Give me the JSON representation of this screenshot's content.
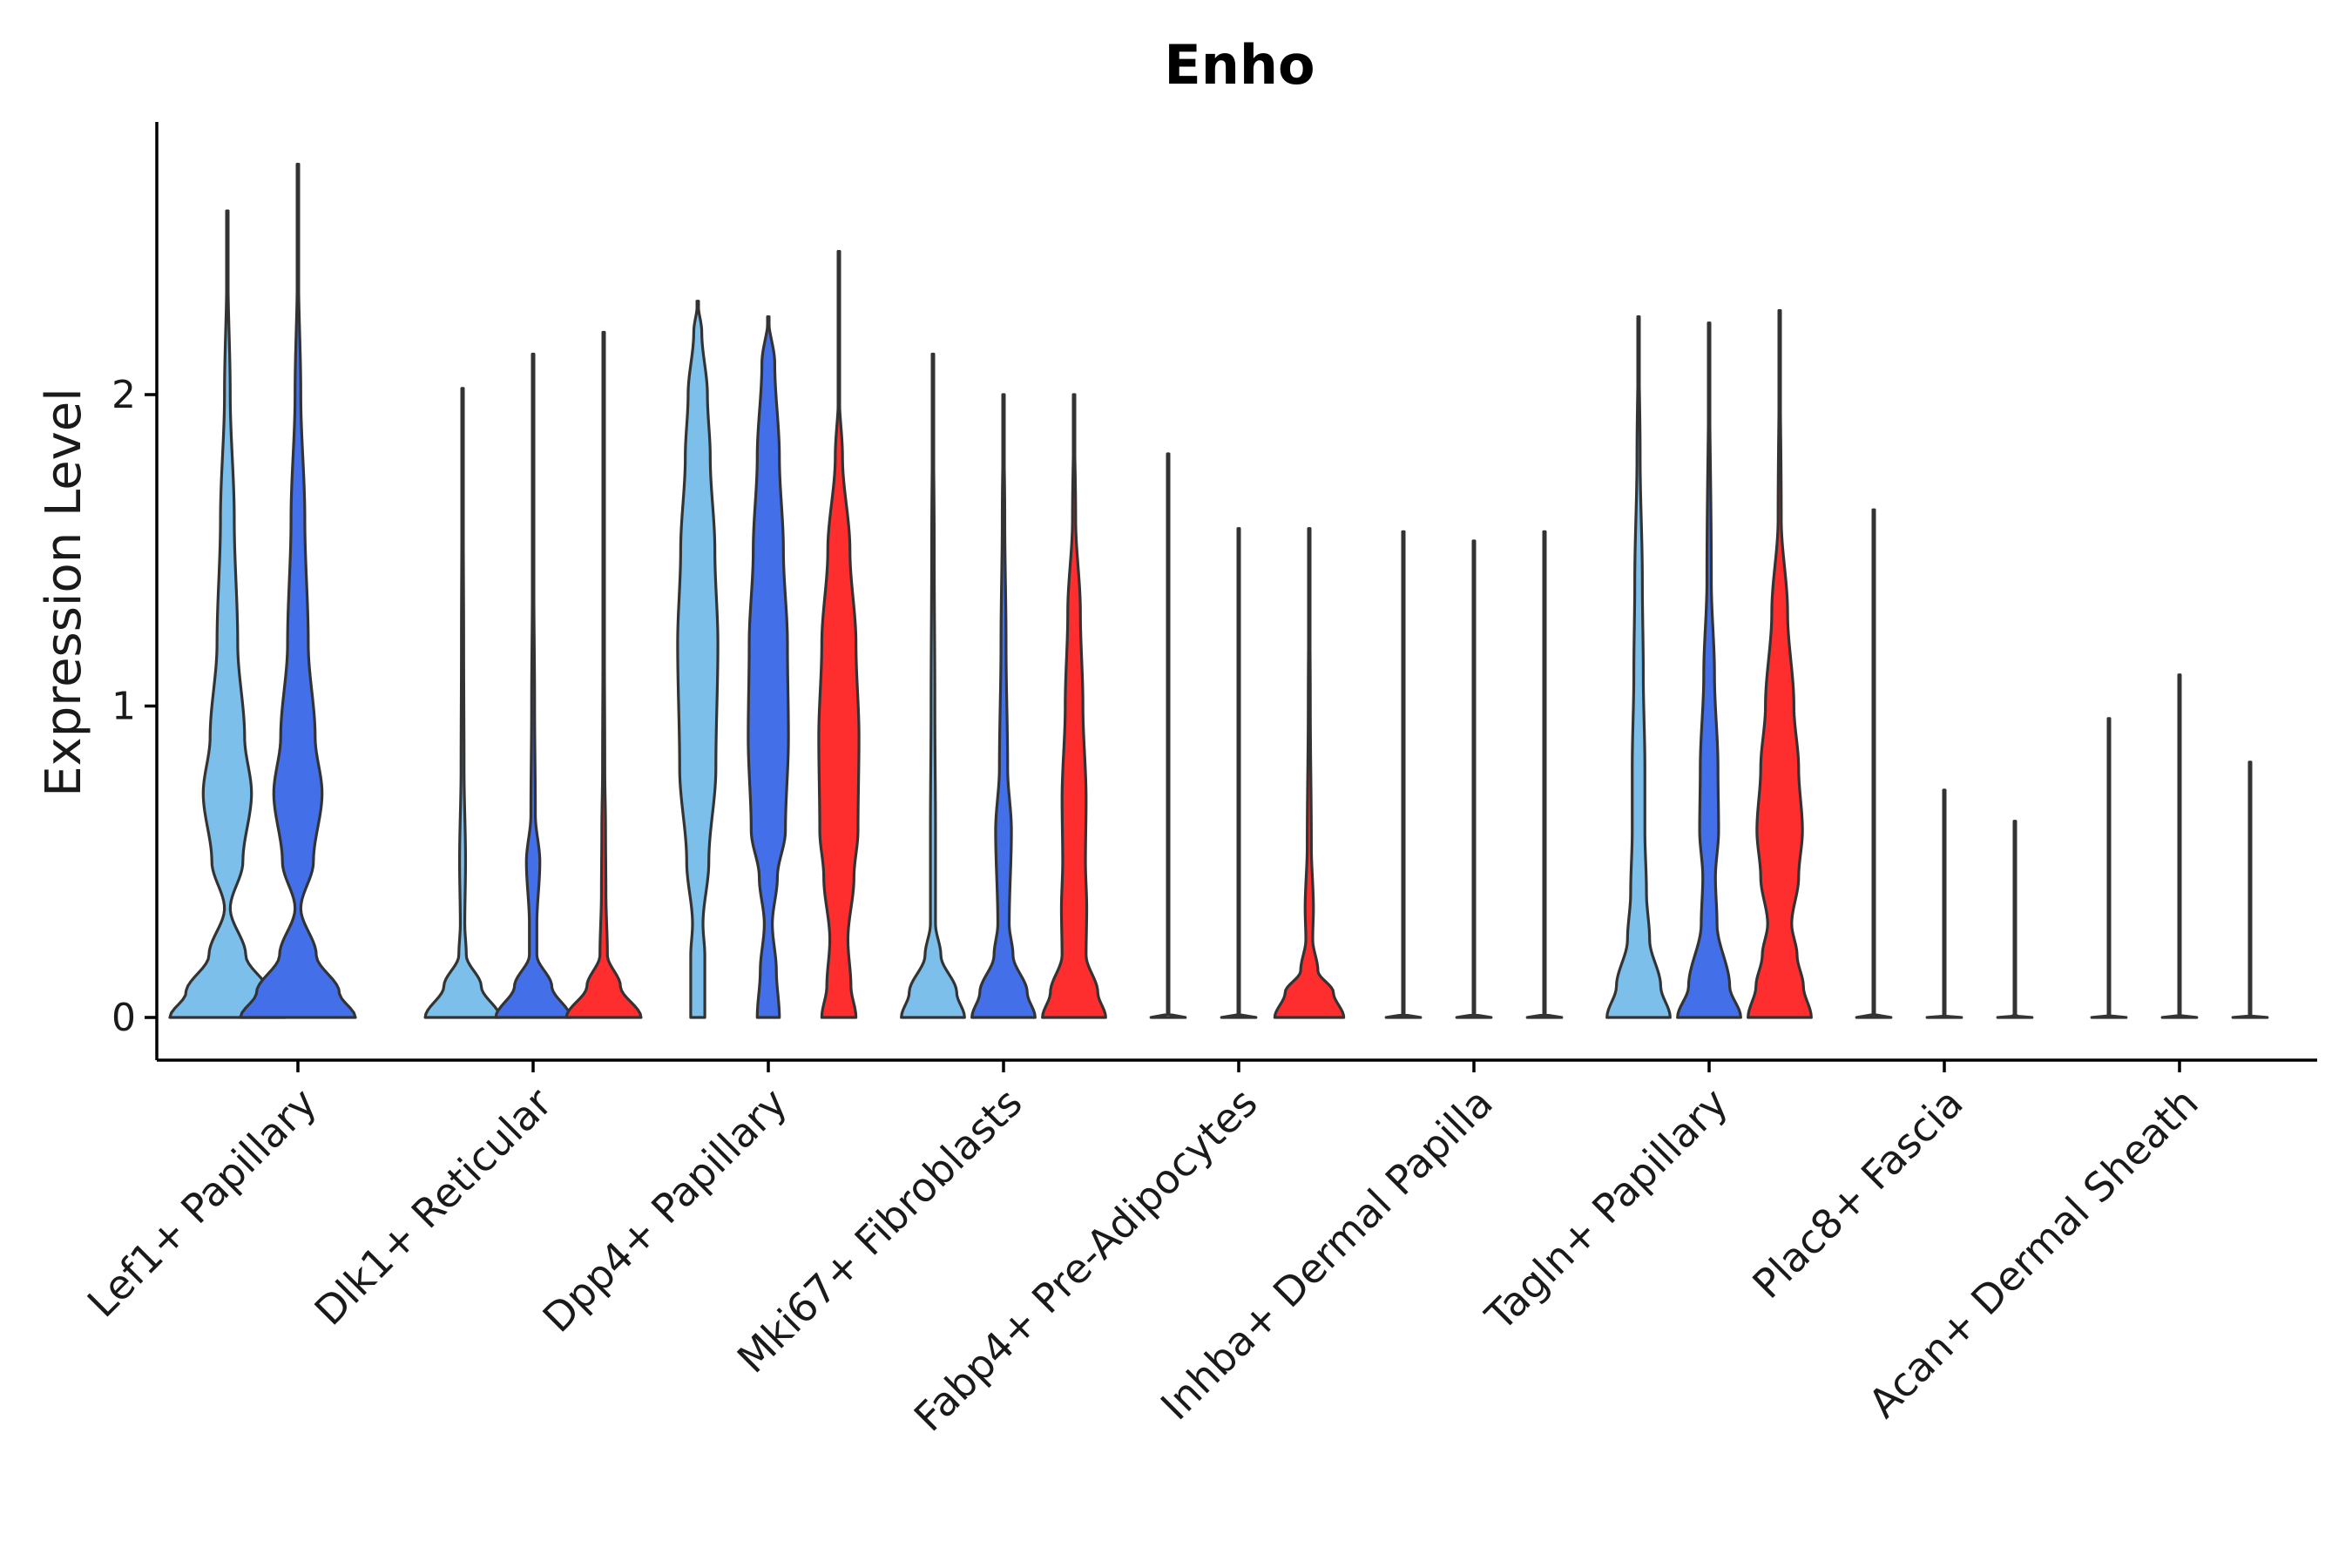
{
  "chart_data": {
    "type": "violin",
    "title": "Enho",
    "ylabel": "Expression Level",
    "xlabel": "",
    "ylim": [
      -0.14,
      2.88
    ],
    "yticks": [
      0,
      1,
      2
    ],
    "series_colors": [
      "#7cbfea",
      "#4370e8",
      "#fe2e2f"
    ],
    "categories": [
      {
        "name": "Lef1+ Papillary",
        "violins": [
          {
            "max": 2.59,
            "width": 1.0,
            "profile": [
              [
                0,
                1.0
              ],
              [
                0.08,
                0.72
              ],
              [
                0.2,
                0.32
              ],
              [
                0.35,
                0.05
              ],
              [
                0.5,
                0.27
              ],
              [
                0.72,
                0.42
              ],
              [
                0.9,
                0.3
              ],
              [
                1.2,
                0.18
              ],
              [
                1.6,
                0.12
              ],
              [
                2.0,
                0.05
              ],
              [
                2.4,
                0.01
              ],
              [
                2.59,
                0
              ]
            ]
          },
          {
            "max": 2.74,
            "width": 1.0,
            "profile": [
              [
                0,
                1.0
              ],
              [
                0.08,
                0.72
              ],
              [
                0.2,
                0.32
              ],
              [
                0.35,
                0.05
              ],
              [
                0.5,
                0.27
              ],
              [
                0.72,
                0.42
              ],
              [
                0.9,
                0.3
              ],
              [
                1.2,
                0.18
              ],
              [
                1.6,
                0.12
              ],
              [
                2.0,
                0.05
              ],
              [
                2.4,
                0.01
              ],
              [
                2.74,
                0
              ]
            ]
          },
          null
        ]
      },
      {
        "name": "Dlk1+ Reticular",
        "violins": [
          {
            "max": 2.02,
            "width": 0.65,
            "profile": [
              [
                0,
                1.0
              ],
              [
                0.1,
                0.5
              ],
              [
                0.2,
                0.1
              ],
              [
                0.3,
                0.06
              ],
              [
                0.5,
                0.08
              ],
              [
                0.8,
                0.04
              ],
              [
                1.2,
                0.03
              ],
              [
                1.6,
                0.02
              ],
              [
                2.02,
                0
              ]
            ]
          },
          {
            "max": 2.13,
            "width": 0.65,
            "profile": [
              [
                0,
                1.0
              ],
              [
                0.1,
                0.5
              ],
              [
                0.2,
                0.1
              ],
              [
                0.3,
                0.1
              ],
              [
                0.5,
                0.18
              ],
              [
                0.65,
                0.06
              ],
              [
                1.0,
                0.04
              ],
              [
                1.4,
                0.02
              ],
              [
                2.13,
                0
              ]
            ]
          },
          {
            "max": 2.2,
            "width": 0.65,
            "profile": [
              [
                0,
                1.0
              ],
              [
                0.1,
                0.45
              ],
              [
                0.2,
                0.1
              ],
              [
                0.4,
                0.06
              ],
              [
                0.6,
                0.05
              ],
              [
                0.8,
                0.03
              ],
              [
                1.2,
                0.02
              ],
              [
                2.2,
                0
              ]
            ]
          }
        ]
      },
      {
        "name": "Dpp4+ Papillary",
        "violins": [
          {
            "max": 2.3,
            "width": 0.35,
            "profile": [
              [
                0,
                0.35
              ],
              [
                0.2,
                0.35
              ],
              [
                0.3,
                0.26
              ],
              [
                0.5,
                0.55
              ],
              [
                0.8,
                0.9
              ],
              [
                1.2,
                1.0
              ],
              [
                1.5,
                0.85
              ],
              [
                1.8,
                0.62
              ],
              [
                2.0,
                0.48
              ],
              [
                2.2,
                0.2
              ],
              [
                2.3,
                0
              ]
            ]
          },
          {
            "max": 2.25,
            "width": 0.35,
            "profile": [
              [
                0,
                0.55
              ],
              [
                0.15,
                0.4
              ],
              [
                0.3,
                0.2
              ],
              [
                0.45,
                0.45
              ],
              [
                0.6,
                0.85
              ],
              [
                0.9,
                1.0
              ],
              [
                1.2,
                0.95
              ],
              [
                1.5,
                0.75
              ],
              [
                1.8,
                0.55
              ],
              [
                2.1,
                0.32
              ],
              [
                2.25,
                0
              ]
            ]
          },
          {
            "max": 2.46,
            "width": 0.35,
            "profile": [
              [
                0,
                0.85
              ],
              [
                0.1,
                0.6
              ],
              [
                0.25,
                0.45
              ],
              [
                0.45,
                0.75
              ],
              [
                0.6,
                0.95
              ],
              [
                0.9,
                1.0
              ],
              [
                1.2,
                0.85
              ],
              [
                1.5,
                0.55
              ],
              [
                1.8,
                0.18
              ],
              [
                2.0,
                0.02
              ],
              [
                2.46,
                0
              ]
            ]
          }
        ]
      },
      {
        "name": "Mki67+ Fibroblasts",
        "violins": [
          {
            "max": 2.13,
            "width": 0.55,
            "profile": [
              [
                0,
                1.0
              ],
              [
                0.08,
                0.75
              ],
              [
                0.2,
                0.25
              ],
              [
                0.3,
                0.08
              ],
              [
                0.6,
                0.08
              ],
              [
                1.0,
                0.06
              ],
              [
                1.5,
                0.04
              ],
              [
                2.13,
                0
              ]
            ]
          },
          {
            "max": 2.0,
            "width": 0.55,
            "profile": [
              [
                0,
                1.0
              ],
              [
                0.08,
                0.75
              ],
              [
                0.2,
                0.3
              ],
              [
                0.3,
                0.18
              ],
              [
                0.6,
                0.25
              ],
              [
                0.8,
                0.13
              ],
              [
                1.2,
                0.08
              ],
              [
                1.6,
                0.04
              ],
              [
                2.0,
                0
              ]
            ]
          },
          {
            "max": 2.0,
            "width": 0.55,
            "profile": [
              [
                0,
                1.0
              ],
              [
                0.08,
                0.75
              ],
              [
                0.2,
                0.38
              ],
              [
                0.35,
                0.4
              ],
              [
                0.5,
                0.36
              ],
              [
                0.7,
                0.38
              ],
              [
                1.0,
                0.28
              ],
              [
                1.3,
                0.2
              ],
              [
                1.6,
                0.05
              ],
              [
                2.0,
                0
              ]
            ]
          }
        ]
      },
      {
        "name": "Fabp4+ Pre-Adipocytes",
        "violins": [
          {
            "max": 1.81,
            "width": 0.3,
            "profile": [
              [
                0,
                1.0
              ],
              [
                0.005,
                0.0
              ],
              [
                1.81,
                0
              ]
            ]
          },
          {
            "max": 1.57,
            "width": 0.3,
            "profile": [
              [
                0,
                1.0
              ],
              [
                0.005,
                0.0
              ],
              [
                1.57,
                0
              ]
            ]
          },
          {
            "max": 1.57,
            "width": 0.6,
            "profile": [
              [
                0,
                1.0
              ],
              [
                0.08,
                0.7
              ],
              [
                0.15,
                0.25
              ],
              [
                0.25,
                0.1
              ],
              [
                0.35,
                0.12
              ],
              [
                0.55,
                0.06
              ],
              [
                1.0,
                0.03
              ],
              [
                1.57,
                0
              ]
            ]
          }
        ]
      },
      {
        "name": "Inhba+ Dermal Papilla",
        "violins": [
          {
            "max": 1.56,
            "width": 0.3,
            "profile": [
              [
                0,
                1.0
              ],
              [
                0.005,
                0.0
              ],
              [
                1.56,
                0
              ]
            ]
          },
          {
            "max": 1.53,
            "width": 0.3,
            "profile": [
              [
                0,
                1.0
              ],
              [
                0.005,
                0.0
              ],
              [
                1.53,
                0
              ]
            ]
          },
          {
            "max": 1.56,
            "width": 0.3,
            "profile": [
              [
                0,
                1.0
              ],
              [
                0.005,
                0.0
              ],
              [
                1.56,
                0
              ]
            ]
          }
        ]
      },
      {
        "name": "Tagln+ Papillary",
        "violins": [
          {
            "max": 2.25,
            "width": 0.55,
            "profile": [
              [
                0,
                1.0
              ],
              [
                0.1,
                0.7
              ],
              [
                0.25,
                0.35
              ],
              [
                0.4,
                0.25
              ],
              [
                0.6,
                0.2
              ],
              [
                0.8,
                0.2
              ],
              [
                1.1,
                0.15
              ],
              [
                1.4,
                0.12
              ],
              [
                1.8,
                0.05
              ],
              [
                2.25,
                0
              ]
            ]
          },
          {
            "max": 2.23,
            "width": 0.55,
            "profile": [
              [
                0,
                1.0
              ],
              [
                0.1,
                0.65
              ],
              [
                0.3,
                0.25
              ],
              [
                0.45,
                0.2
              ],
              [
                0.6,
                0.3
              ],
              [
                0.8,
                0.28
              ],
              [
                1.1,
                0.17
              ],
              [
                1.4,
                0.07
              ],
              [
                2.23,
                0
              ]
            ]
          },
          {
            "max": 2.27,
            "width": 0.55,
            "profile": [
              [
                0,
                1.0
              ],
              [
                0.1,
                0.75
              ],
              [
                0.2,
                0.55
              ],
              [
                0.3,
                0.38
              ],
              [
                0.45,
                0.6
              ],
              [
                0.6,
                0.72
              ],
              [
                0.8,
                0.6
              ],
              [
                1.0,
                0.45
              ],
              [
                1.3,
                0.25
              ],
              [
                1.6,
                0.05
              ],
              [
                2.27,
                0
              ]
            ]
          }
        ]
      },
      {
        "name": "Plac8+ Fascia",
        "violins": [
          {
            "max": 1.63,
            "width": 0.3,
            "profile": [
              [
                0,
                1.0
              ],
              [
                0.005,
                0.0
              ],
              [
                1.63,
                0
              ]
            ]
          },
          {
            "max": 0.73,
            "width": 0.3,
            "profile": [
              [
                0,
                1.0
              ],
              [
                0.005,
                0.0
              ],
              [
                0.73,
                0
              ]
            ]
          },
          {
            "max": 0.63,
            "width": 0.3,
            "profile": [
              [
                0,
                1.0
              ],
              [
                0.005,
                0.0
              ],
              [
                0.63,
                0
              ]
            ]
          }
        ]
      },
      {
        "name": "Acan+ Dermal Sheath",
        "violins": [
          {
            "max": 0.96,
            "width": 0.3,
            "profile": [
              [
                0,
                1.0
              ],
              [
                0.005,
                0.0
              ],
              [
                0.96,
                0
              ]
            ]
          },
          {
            "max": 1.1,
            "width": 0.3,
            "profile": [
              [
                0,
                1.0
              ],
              [
                0.005,
                0.0
              ],
              [
                1.1,
                0
              ]
            ]
          },
          {
            "max": 0.82,
            "width": 0.3,
            "profile": [
              [
                0,
                1.0
              ],
              [
                0.005,
                0.0
              ],
              [
                0.82,
                0
              ]
            ]
          }
        ]
      }
    ]
  }
}
